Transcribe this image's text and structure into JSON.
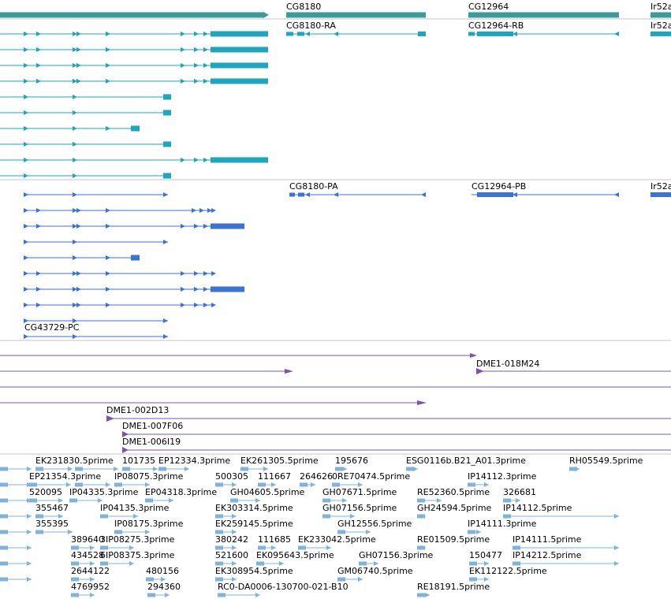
{
  "colors": {
    "gene_track": "#3c9b9b",
    "transcript_a": "#1ea6bf",
    "transcript_b": "#3a73d6",
    "clone": "#7a55b0",
    "est": "#7fb4d8",
    "divider": "#c4c4c4",
    "background": "#ffffff"
  },
  "gene_labels": [
    "CG8180",
    "CG12964",
    "Ir52a"
  ],
  "transcript_labels_a": [
    "CG8180-RA",
    "CG12964-RB",
    "Ir52a"
  ],
  "transcript_labels_b": [
    "CG8180-PA",
    "CG12964-PB",
    "Ir52a",
    "CG43729-PC"
  ],
  "clone_labels": [
    "DME1-018M24",
    "DME1-002D13",
    "DME1-007F06",
    "DME1-006I19"
  ],
  "est_labels": [
    "EK231830.5prime",
    "101735",
    "EP12334.3prime",
    "EK261305.5prime",
    "195676",
    "ESG0116b.B21_A01.3prime",
    "RH05549.5prime",
    "EP21354.3prime",
    "IP08075.3prime",
    "500305",
    "111667",
    "264626",
    "0RE70474.5prime",
    "IP14112.3prime",
    "520095",
    "IP04335.3prime",
    "EP04318.3prime",
    "GH04605.5prime",
    "GH07671.5prime",
    "RE52360.5prime",
    "326681",
    "355467",
    "IP04135.3prime",
    "EK303314.5prime",
    "GH07156.5prime",
    "GH24594.5prime",
    "IP14112.5prime",
    "355395",
    "IP08175.3prime",
    "EK259145.5prime",
    "GH12556.5prime",
    "IP14111.3prime",
    "389640",
    "3IP08275.3prime",
    "380242",
    "111685",
    "EK233042.5prime",
    "RE01509.5prime",
    "IP14111.5prime",
    "434528",
    "6IP08375.3prime",
    "521600",
    "EK095643.5prime",
    "GH07156.3prime",
    "150477",
    "IP14212.5prime",
    "2644122",
    "480156",
    "EK308954.5prime",
    "GM06740.5prime",
    "EK112122.5prime",
    "4769952",
    "294360",
    "RC0-DA0006-130700-021-B10",
    "RE18191.5prime"
  ]
}
